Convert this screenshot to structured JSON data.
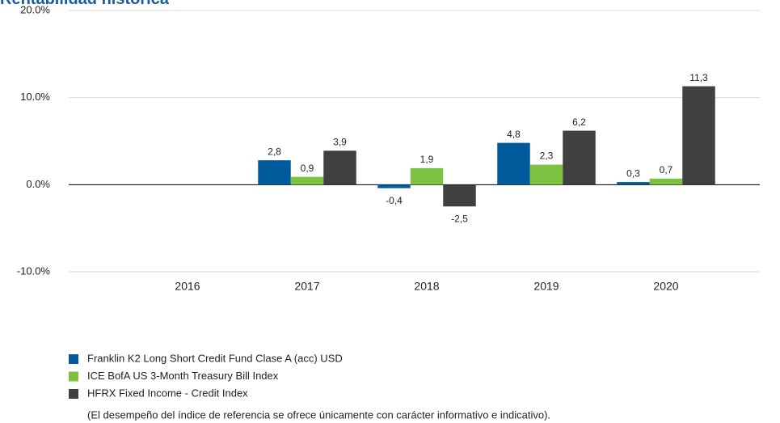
{
  "chart_data": {
    "type": "bar",
    "title": "Rentabilidad histórica",
    "categories": [
      "2016",
      "2017",
      "2018",
      "2019",
      "2020"
    ],
    "series": [
      {
        "name": "Franklin K2 Long Short Credit Fund Clase A (acc) USD",
        "color": "#005a9c",
        "values": [
          null,
          2.8,
          -0.4,
          4.8,
          0.3
        ],
        "value_labels": [
          null,
          "2,8",
          "-0,4",
          "4,8",
          "0,3"
        ]
      },
      {
        "name": "ICE BofA US 3-Month Treasury Bill Index",
        "color": "#7cc142",
        "values": [
          null,
          0.9,
          1.9,
          2.3,
          0.7
        ],
        "value_labels": [
          null,
          "0,9",
          "1,9",
          "2,3",
          "0,7"
        ]
      },
      {
        "name": "HFRX Fixed Income - Credit Index",
        "color": "#404040",
        "values": [
          null,
          3.9,
          -2.5,
          6.2,
          11.3
        ],
        "value_labels": [
          null,
          "3,9",
          "-2,5",
          "6,2",
          "11,3"
        ]
      }
    ],
    "ylim": [
      -10,
      20
    ],
    "yticks": [
      {
        "value": -10,
        "label": "-10.0%"
      },
      {
        "value": 0,
        "label": "0.0%"
      },
      {
        "value": 10,
        "label": "10.0%"
      },
      {
        "value": 20,
        "label": "20.0%"
      }
    ],
    "grid": true,
    "note": "(El desempeño del índice de referencia se ofrece únicamente con carácter informativo e indicativo)."
  }
}
